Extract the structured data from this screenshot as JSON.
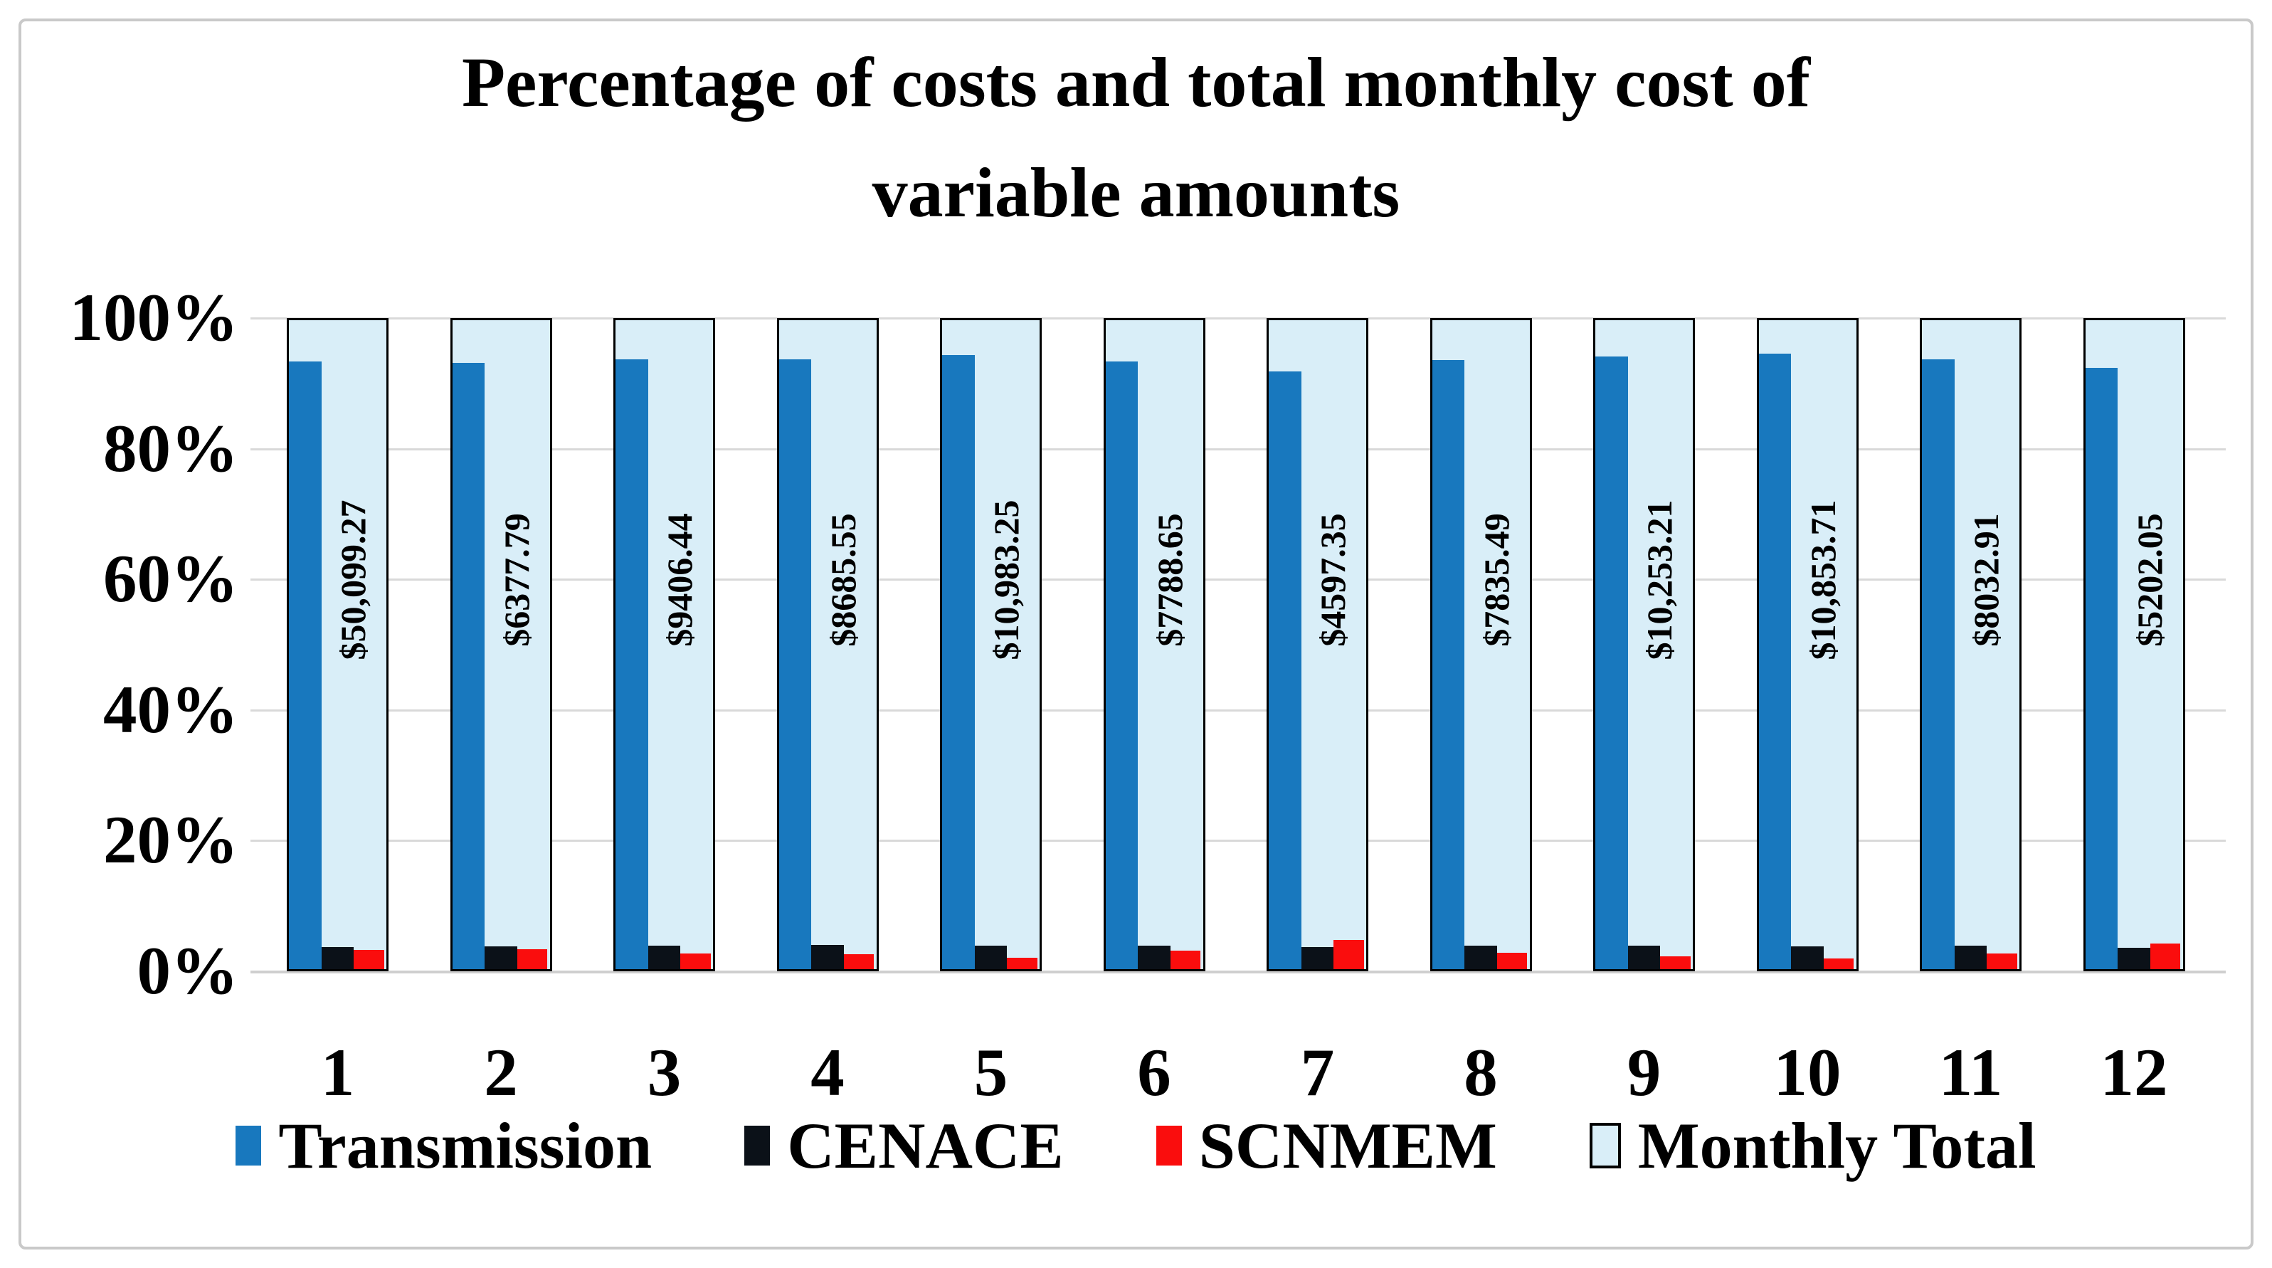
{
  "title_lines": [
    "Percentage of costs and total monthly cost of",
    "variable amounts"
  ],
  "y_axis": {
    "tick_labels": [
      "100%",
      "80%",
      "60%",
      "40%",
      "20%",
      "0%"
    ],
    "tick_values": [
      100,
      80,
      60,
      40,
      20,
      0
    ]
  },
  "x_axis": {
    "tick_labels": [
      "1",
      "2",
      "3",
      "4",
      "5",
      "6",
      "7",
      "8",
      "9",
      "10",
      "11",
      "12"
    ]
  },
  "legend": {
    "items": [
      {
        "label": "Transmission",
        "color": "#1878BE",
        "outlined": false
      },
      {
        "label": "CENACE",
        "color": "#0B1118",
        "outlined": false
      },
      {
        "label": "SCNMEM",
        "color": "#FA0D0D",
        "outlined": false
      },
      {
        "label": "Monthly Total",
        "color": "#D9EEF8",
        "outlined": true
      }
    ]
  },
  "colors": {
    "transmission": "#1878BE",
    "cenace": "#0B1118",
    "scnmem": "#FA0D0D",
    "monthly_total": "#D9EEF8",
    "bar_outline": "#000000",
    "gridline": "#d9d9d9",
    "frame_border": "#c9c9c9",
    "text": "#000000"
  },
  "chart_data": {
    "type": "bar",
    "title": "Percentage of costs and total monthly cost of variable amounts",
    "categories": [
      "1",
      "2",
      "3",
      "4",
      "5",
      "6",
      "7",
      "8",
      "9",
      "10",
      "11",
      "12"
    ],
    "xlabel": "",
    "ylabel": "",
    "ylim": [
      0,
      100
    ],
    "y_unit": "%",
    "grid": true,
    "legend_position": "bottom",
    "series": [
      {
        "name": "Transmission",
        "color": "#1878BE",
        "values": [
          93.6,
          93.4,
          94.0,
          94.0,
          94.6,
          93.6,
          92.1,
          93.9,
          94.4,
          94.8,
          94.0,
          92.7
        ]
      },
      {
        "name": "CENACE",
        "color": "#0B1118",
        "values": [
          3.4,
          3.5,
          3.6,
          3.7,
          3.6,
          3.6,
          3.4,
          3.6,
          3.6,
          3.5,
          3.6,
          3.3
        ]
      },
      {
        "name": "SCNMEM",
        "color": "#FA0D0D",
        "values": [
          3.0,
          3.1,
          2.4,
          2.3,
          1.8,
          2.8,
          4.5,
          2.5,
          2.0,
          1.7,
          2.4,
          4.0
        ]
      },
      {
        "name": "Monthly Total",
        "color": "#D9EEF8",
        "values": [
          100,
          100,
          100,
          100,
          100,
          100,
          100,
          100,
          100,
          100,
          100,
          100
        ]
      }
    ],
    "bar_labels": [
      "$50,099.27",
      "$6377.79",
      "$9406.44",
      "$8685.55",
      "$10,983.25",
      "$7788.65",
      "$4597.35",
      "$7835.49",
      "$10,253.21",
      "$10,853.71",
      "$8032.91",
      "$5202.05"
    ]
  }
}
